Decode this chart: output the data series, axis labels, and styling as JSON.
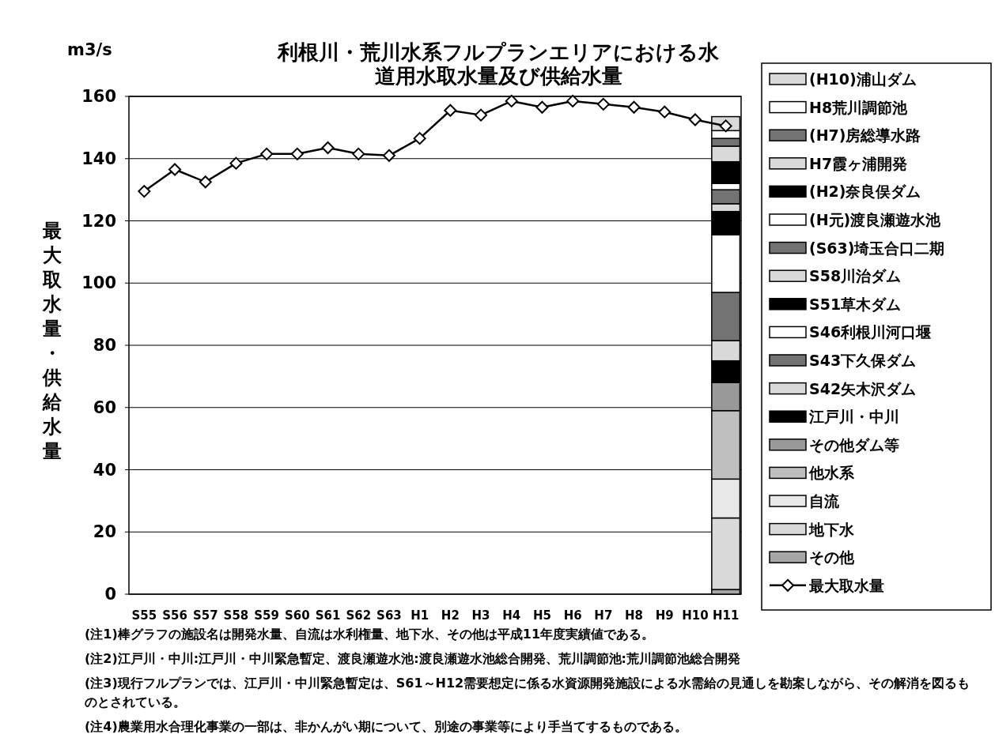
{
  "chart_data": {
    "type": "bar",
    "title": "利根川・荒川水系フルプランエリアにおける水道用水取水量及び供給水量",
    "ylabel": "最大取水量・供給水量",
    "stacked": true,
    "grid": "y",
    "legend": "right",
    "marker": "diamond",
    "ylim": [
      0,
      160
    ],
    "yticks": [
      0,
      20,
      40,
      60,
      80,
      100,
      120,
      140,
      160
    ],
    "categories": [
      "S55",
      "S56",
      "S57",
      "S58",
      "S59",
      "S60",
      "S61",
      "S62",
      "S63",
      "H1",
      "H2",
      "H3",
      "H4",
      "H5",
      "H6",
      "H7",
      "H8",
      "H9",
      "H10",
      "H11"
    ],
    "series": [
      {
        "name": "その他",
        "color": "#a6a6a6",
        "values": [
          null,
          null,
          null,
          null,
          null,
          null,
          null,
          null,
          null,
          null,
          null,
          null,
          null,
          null,
          null,
          null,
          null,
          null,
          null,
          1.5
        ]
      },
      {
        "name": "地下水",
        "color": "#d9d9d9",
        "values": [
          null,
          null,
          null,
          null,
          null,
          null,
          null,
          null,
          null,
          null,
          null,
          null,
          null,
          null,
          null,
          null,
          null,
          null,
          null,
          23
        ]
      },
      {
        "name": "自流",
        "color": "#e8e8e8",
        "values": [
          null,
          null,
          null,
          null,
          null,
          null,
          null,
          null,
          null,
          null,
          null,
          null,
          null,
          null,
          null,
          null,
          null,
          null,
          null,
          12.5
        ]
      },
      {
        "name": "他水系",
        "color": "#bfbfbf",
        "values": [
          null,
          null,
          null,
          null,
          null,
          null,
          null,
          null,
          null,
          null,
          null,
          null,
          null,
          null,
          null,
          null,
          null,
          null,
          null,
          22
        ]
      },
      {
        "name": "その他ダム等",
        "color": "#999999",
        "values": [
          null,
          null,
          null,
          null,
          null,
          null,
          null,
          null,
          null,
          null,
          null,
          null,
          null,
          null,
          null,
          null,
          null,
          null,
          null,
          9
        ]
      },
      {
        "name": "江戸川・中川",
        "color": "#000000",
        "values": [
          null,
          null,
          null,
          null,
          null,
          null,
          null,
          null,
          null,
          null,
          null,
          null,
          null,
          null,
          null,
          null,
          null,
          null,
          null,
          7
        ]
      },
      {
        "name": "S42矢木沢ダム",
        "color": "#d9d9d9",
        "values": [
          null,
          null,
          null,
          null,
          null,
          null,
          null,
          null,
          null,
          null,
          null,
          null,
          null,
          null,
          null,
          null,
          null,
          null,
          null,
          6.5
        ]
      },
      {
        "name": "S43下久保ダム",
        "color": "#737373",
        "values": [
          null,
          null,
          null,
          null,
          null,
          null,
          null,
          null,
          null,
          null,
          null,
          null,
          null,
          null,
          null,
          null,
          null,
          null,
          null,
          15.5
        ]
      },
      {
        "name": "S46利根川河口堰",
        "color": "#ffffff",
        "values": [
          null,
          null,
          null,
          null,
          null,
          null,
          null,
          null,
          null,
          null,
          null,
          null,
          null,
          null,
          null,
          null,
          null,
          null,
          null,
          18.5
        ]
      },
      {
        "name": "S51草木ダム",
        "color": "#000000",
        "values": [
          null,
          null,
          null,
          null,
          null,
          null,
          null,
          null,
          null,
          null,
          null,
          null,
          null,
          null,
          null,
          null,
          null,
          null,
          null,
          7.5
        ]
      },
      {
        "name": "S58川治ダム",
        "color": "#d9d9d9",
        "values": [
          null,
          null,
          null,
          null,
          null,
          null,
          null,
          null,
          null,
          null,
          null,
          null,
          null,
          null,
          null,
          null,
          null,
          null,
          null,
          2.5
        ]
      },
      {
        "name": "(S63)埼玉合口二期",
        "color": "#737373",
        "values": [
          null,
          null,
          null,
          null,
          null,
          null,
          null,
          null,
          null,
          null,
          null,
          null,
          null,
          null,
          null,
          null,
          null,
          null,
          null,
          4.5
        ]
      },
      {
        "name": "(H元)渡良瀬遊水池",
        "color": "#ffffff",
        "values": [
          null,
          null,
          null,
          null,
          null,
          null,
          null,
          null,
          null,
          null,
          null,
          null,
          null,
          null,
          null,
          null,
          null,
          null,
          null,
          2
        ]
      },
      {
        "name": "(H2)奈良俣ダム",
        "color": "#000000",
        "values": [
          null,
          null,
          null,
          null,
          null,
          null,
          null,
          null,
          null,
          null,
          null,
          null,
          null,
          null,
          null,
          null,
          null,
          null,
          null,
          7
        ]
      },
      {
        "name": "H7霞ヶ浦開発",
        "color": "#d9d9d9",
        "values": [
          null,
          null,
          null,
          null,
          null,
          null,
          null,
          null,
          null,
          null,
          null,
          null,
          null,
          null,
          null,
          null,
          null,
          null,
          null,
          5
        ]
      },
      {
        "name": "(H7)房総導水路",
        "color": "#737373",
        "values": [
          null,
          null,
          null,
          null,
          null,
          null,
          null,
          null,
          null,
          null,
          null,
          null,
          null,
          null,
          null,
          null,
          null,
          null,
          null,
          2.5
        ]
      },
      {
        "name": "H8荒川調節池",
        "color": "#ffffff",
        "values": [
          null,
          null,
          null,
          null,
          null,
          null,
          null,
          null,
          null,
          null,
          null,
          null,
          null,
          null,
          null,
          null,
          null,
          null,
          null,
          2.5
        ]
      },
      {
        "name": "(H10)浦山ダム",
        "color": "#d9d9d9",
        "values": [
          null,
          null,
          null,
          null,
          null,
          null,
          null,
          null,
          null,
          null,
          null,
          null,
          null,
          null,
          null,
          null,
          null,
          null,
          null,
          4.5
        ]
      },
      {
        "name": "最大取水量",
        "type": "line",
        "color": "#000000",
        "values": [
          129.5,
          136.5,
          132.5,
          138.5,
          141.5,
          141.5,
          143.5,
          141.5,
          141,
          146.5,
          155.5,
          154,
          158.5,
          156.5,
          158.5,
          157.5,
          156.5,
          155,
          152.5,
          150.5
        ]
      }
    ],
    "annotations": [
      "m3/s",
      "(注1)棒グラフの施設名は開発水量、自流は水利権量、地下水、その他は平成11年度実績値である。",
      "(注2)江戸川・中川:江戸川・中川緊急暫定、渡良瀬遊水池:渡良瀬遊水池総合開発、荒川調節池:荒川調節池総合開発",
      "(注3)現行フルプランでは、江戸川・中川緊急暫定は、S61～H12需要想定に係る水資源開発施設による水需給の見通しを勘案しながら、その解消を図るものとされている。",
      "(注4)農業用水合理化事業の一部は、非かんがい期について、別途の事業等により手当てするものである。"
    ]
  }
}
